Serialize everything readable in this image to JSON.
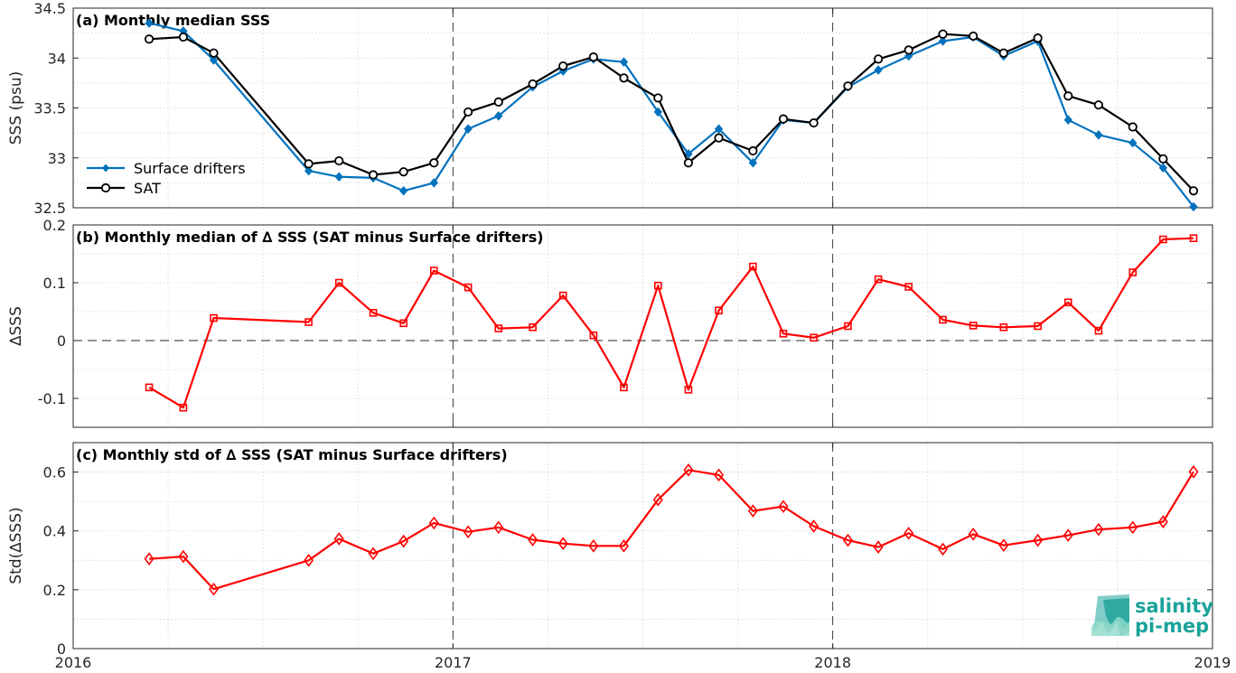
{
  "chart_data": [
    {
      "type": "line",
      "title": "(a) Monthly median SSS",
      "ylabel": "SSS (psu)",
      "xlim": [
        2016,
        2019
      ],
      "ylim": [
        32.5,
        34.5
      ],
      "xticks": [
        "2016",
        "2017",
        "2018",
        "2019"
      ],
      "yticks": [
        "32.5",
        "33",
        "33.5",
        "34",
        "34.5"
      ],
      "grid": true,
      "legend_position": "bottom-left",
      "x": [
        2016.2,
        2016.29,
        2016.37,
        2016.62,
        2016.7,
        2016.79,
        2016.87,
        2016.95,
        2017.04,
        2017.12,
        2017.21,
        2017.29,
        2017.37,
        2017.45,
        2017.54,
        2017.62,
        2017.7,
        2017.79,
        2017.87,
        2017.95,
        2018.04,
        2018.12,
        2018.2,
        2018.29,
        2018.37,
        2018.45,
        2018.54,
        2018.62,
        2018.7,
        2018.79,
        2018.87,
        2018.95
      ],
      "series": [
        {
          "name": "Surface drifters",
          "color": "#0072BD",
          "marker": "diamond",
          "values": [
            34.35,
            34.27,
            33.98,
            32.87,
            32.81,
            32.8,
            32.67,
            32.75,
            33.29,
            33.42,
            33.71,
            33.87,
            33.99,
            33.96,
            33.46,
            33.04,
            33.29,
            32.95,
            33.38,
            33.35,
            33.71,
            33.88,
            34.02,
            34.17,
            34.21,
            34.02,
            34.17,
            33.38,
            33.23,
            33.15,
            32.9,
            32.51
          ]
        },
        {
          "name": "SAT",
          "color": "#000000",
          "marker": "circle",
          "values": [
            34.19,
            34.21,
            34.05,
            32.94,
            32.97,
            32.83,
            32.86,
            32.95,
            33.46,
            33.56,
            33.74,
            33.92,
            34.01,
            33.8,
            33.6,
            32.95,
            33.2,
            33.07,
            33.39,
            33.35,
            33.72,
            33.99,
            34.08,
            34.24,
            34.22,
            34.05,
            34.2,
            33.62,
            33.53,
            33.31,
            32.99,
            32.67
          ]
        }
      ]
    },
    {
      "type": "line",
      "title": "(b) Monthly median of ∆ SSS (SAT minus Surface drifters)",
      "ylabel": "∆SSS",
      "xlim": [
        2016,
        2019
      ],
      "ylim": [
        -0.15,
        0.2
      ],
      "xticks": [
        "2016",
        "2017",
        "2018",
        "2019"
      ],
      "yticks": [
        "-0.1",
        "0",
        "0.1",
        "0.2"
      ],
      "grid": true,
      "x": [
        2016.2,
        2016.29,
        2016.37,
        2016.62,
        2016.7,
        2016.79,
        2016.87,
        2016.95,
        2017.04,
        2017.12,
        2017.21,
        2017.29,
        2017.37,
        2017.45,
        2017.54,
        2017.62,
        2017.7,
        2017.79,
        2017.87,
        2017.95,
        2018.04,
        2018.12,
        2018.2,
        2018.29,
        2018.37,
        2018.45,
        2018.54,
        2018.62,
        2018.7,
        2018.79,
        2018.87,
        2018.95
      ],
      "series": [
        {
          "color": "#FF0000",
          "marker": "square",
          "values": [
            -0.081,
            -0.116,
            0.039,
            0.032,
            0.1,
            0.048,
            0.03,
            0.121,
            0.092,
            0.021,
            0.023,
            0.078,
            0.009,
            -0.081,
            0.095,
            -0.085,
            0.052,
            0.128,
            0.012,
            0.005,
            0.025,
            0.106,
            0.093,
            0.036,
            0.026,
            0.023,
            0.025,
            0.066,
            0.017,
            0.118,
            0.175,
            0.177
          ]
        }
      ]
    },
    {
      "type": "line",
      "title": "(c) Monthly std of ∆ SSS (SAT minus Surface drifters)",
      "ylabel": "Std(∆SSS)",
      "xlim": [
        2016,
        2019
      ],
      "ylim": [
        0,
        0.7
      ],
      "xticks": [
        "2016",
        "2017",
        "2018",
        "2019"
      ],
      "yticks": [
        "0",
        "0.2",
        "0.4",
        "0.6"
      ],
      "grid": true,
      "x": [
        2016.2,
        2016.29,
        2016.37,
        2016.62,
        2016.7,
        2016.79,
        2016.87,
        2016.95,
        2017.04,
        2017.12,
        2017.21,
        2017.29,
        2017.37,
        2017.45,
        2017.54,
        2017.62,
        2017.7,
        2017.79,
        2017.87,
        2017.95,
        2018.04,
        2018.12,
        2018.2,
        2018.29,
        2018.37,
        2018.45,
        2018.54,
        2018.62,
        2018.7,
        2018.79,
        2018.87,
        2018.95
      ],
      "series": [
        {
          "color": "#FF0000",
          "marker": "diamond",
          "values": [
            0.305,
            0.313,
            0.202,
            0.3,
            0.373,
            0.323,
            0.365,
            0.427,
            0.397,
            0.412,
            0.37,
            0.357,
            0.349,
            0.349,
            0.506,
            0.607,
            0.59,
            0.468,
            0.483,
            0.416,
            0.368,
            0.345,
            0.392,
            0.338,
            0.389,
            0.351,
            0.368,
            0.385,
            0.405,
            0.412,
            0.431,
            0.601
          ]
        }
      ]
    }
  ],
  "logo": {
    "line1": "salinity",
    "line2": "pi-mep",
    "color": "#1aa39a"
  }
}
